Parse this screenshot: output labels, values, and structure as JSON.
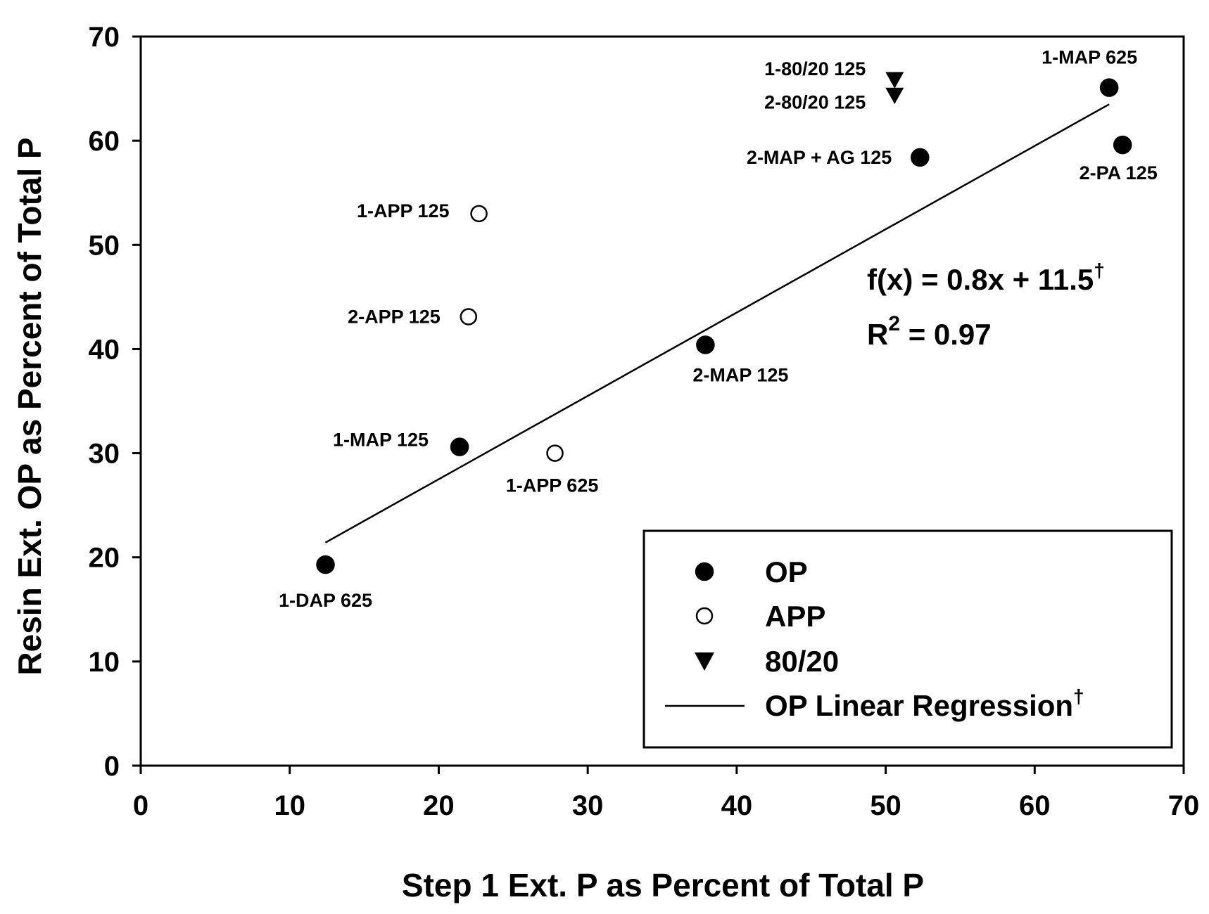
{
  "chart_data": {
    "type": "scatter",
    "xlabel": "Step 1 Ext. P as Percent of Total P",
    "ylabel": "Resin Ext. OP as Percent of Total P",
    "xlim": [
      0,
      70
    ],
    "ylim": [
      0,
      70
    ],
    "xticks": [
      0,
      10,
      20,
      30,
      40,
      50,
      60,
      70
    ],
    "yticks": [
      0,
      10,
      20,
      30,
      40,
      50,
      60,
      70
    ],
    "grid": false,
    "legend_position": "bottom-right",
    "series": [
      {
        "name": "OP",
        "marker": "filled-circle",
        "color": "#000000",
        "points": [
          {
            "label": "1-DAP 625",
            "x": 12.4,
            "y": 19.3
          },
          {
            "label": "1-MAP 125",
            "x": 21.4,
            "y": 30.6
          },
          {
            "label": "2-MAP 125",
            "x": 37.9,
            "y": 40.4
          },
          {
            "label": "2-MAP + AG 125",
            "x": 52.3,
            "y": 58.4
          },
          {
            "label": "1-MAP 625",
            "x": 65.0,
            "y": 65.1
          },
          {
            "label": "2-PA 125",
            "x": 65.9,
            "y": 59.6
          }
        ]
      },
      {
        "name": "APP",
        "marker": "open-circle",
        "color": "#000000",
        "points": [
          {
            "label": "1-APP 125",
            "x": 22.7,
            "y": 53.0
          },
          {
            "label": "2-APP 125",
            "x": 22.0,
            "y": 43.1
          },
          {
            "label": "1-APP 625",
            "x": 27.8,
            "y": 30.0
          }
        ]
      },
      {
        "name": "80/20",
        "marker": "filled-triangle-down",
        "color": "#000000",
        "points": [
          {
            "label": "1-80/20 125",
            "x": 50.6,
            "y": 65.8
          },
          {
            "label": "2-80/20 125",
            "x": 50.6,
            "y": 64.3
          }
        ]
      }
    ],
    "regression": {
      "name": "OP Linear Regression",
      "legend_superscript": "†",
      "x_range": [
        12.4,
        65.0
      ],
      "equation": {
        "main": "f(x) = 0.8x + 11.5",
        "dagger": "†",
        "r_prefix": "R",
        "r_exp": "2",
        "r_value": " = 0.97"
      }
    }
  }
}
